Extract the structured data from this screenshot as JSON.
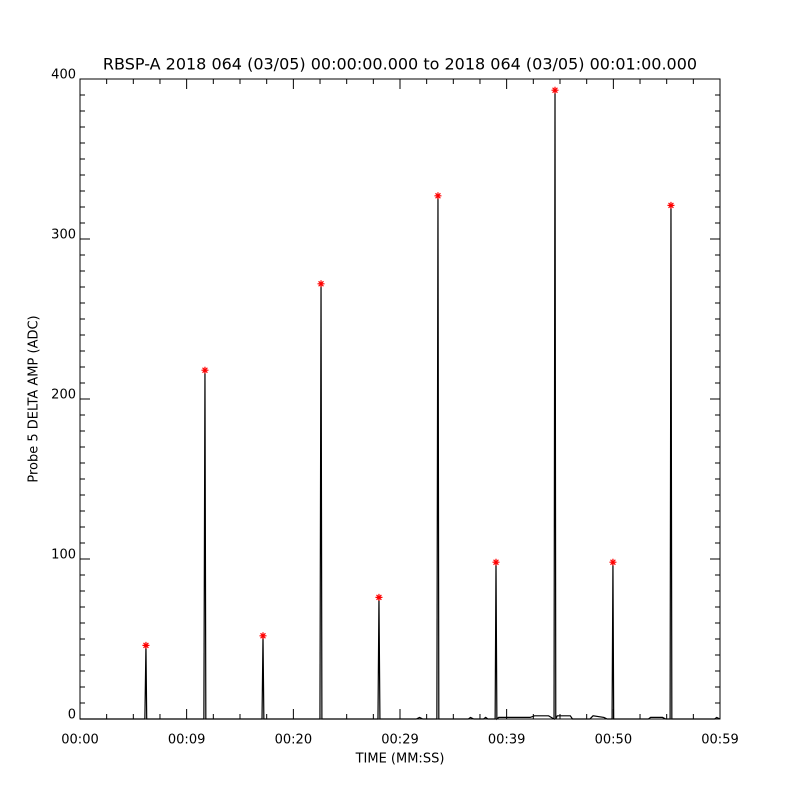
{
  "chart_data": {
    "type": "line",
    "title": "RBSP-A 2018 064 (03/05) 00:00:00.000 to 2018 064 (03/05) 00:01:00.000",
    "x_label": "TIME (MM:SS)",
    "y_label": "Probe 5 DELTA AMP (ADC)",
    "xlim": [
      0,
      59
    ],
    "xticks": [
      {
        "value": 0,
        "label": "00:00"
      },
      {
        "value": 9.83,
        "label": "00:09"
      },
      {
        "value": 19.67,
        "label": "00:20"
      },
      {
        "value": 29.5,
        "label": "00:29"
      },
      {
        "value": 39.33,
        "label": "00:39"
      },
      {
        "value": 49.17,
        "label": "00:50"
      },
      {
        "value": 59,
        "label": "00:59"
      }
    ],
    "ylim": [
      0,
      400
    ],
    "yticks": [
      0,
      100,
      200,
      300,
      400
    ],
    "series": [
      {
        "color": "#000000",
        "x": [
          0,
          5.98,
          6.08,
          6.15,
          11.42,
          11.52,
          11.6,
          16.78,
          16.87,
          16.95,
          22.12,
          22.22,
          22.3,
          27.47,
          27.56,
          27.65,
          31.0,
          31.3,
          31.6,
          32.9,
          33.0,
          33.08,
          35.8,
          36.0,
          36.3,
          37.2,
          37.4,
          37.6,
          38.27,
          38.35,
          38.43,
          38.6,
          41.5,
          41.9,
          43.2,
          43.7,
          43.79,
          43.86,
          44.0,
          45.2,
          45.4,
          47.0,
          47.3,
          48.3,
          48.6,
          49.05,
          49.13,
          49.2,
          52.4,
          52.6,
          53.7,
          54.0,
          54.4,
          54.48,
          54.56,
          58.5,
          58.7,
          59
        ],
        "values": [
          0,
          0,
          46,
          0,
          0,
          218,
          0,
          0,
          52,
          0,
          0,
          272,
          0,
          0,
          76,
          0,
          0,
          1,
          0,
          0,
          327,
          0,
          0,
          1,
          0,
          0,
          1,
          0,
          0,
          98,
          0,
          1,
          1,
          2,
          2,
          0,
          393,
          0,
          2,
          2,
          0,
          0,
          2,
          1,
          0,
          0,
          98,
          0,
          0,
          1,
          1,
          0,
          0,
          321,
          0,
          0,
          1,
          0
        ]
      },
      {
        "color": "#ff0000",
        "marker": "asterisk",
        "x": [
          6.08,
          11.52,
          16.87,
          22.22,
          27.56,
          33.0,
          38.35,
          43.79,
          49.13,
          54.48
        ],
        "values": [
          46,
          218,
          52,
          272,
          76,
          327,
          98,
          393,
          98,
          321
        ]
      }
    ]
  }
}
